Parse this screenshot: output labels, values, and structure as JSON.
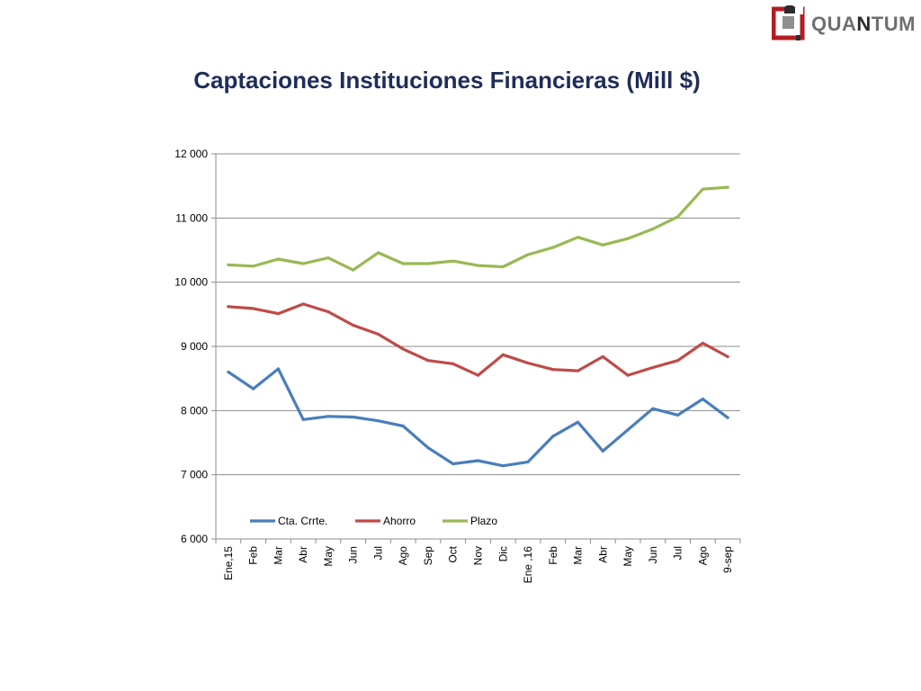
{
  "logo": {
    "text_a": "QUA",
    "text_b": "N",
    "text_c": "TUM"
  },
  "colors": {
    "cta": "#4a7ebb",
    "ahorro": "#be4b48",
    "plazo": "#98b954",
    "title": "#1f2d5a",
    "grid": "#8c8c8c"
  },
  "chart_data": {
    "type": "line",
    "title": "Captaciones Instituciones Financieras (Mill $)",
    "xlabel": "",
    "ylabel": "",
    "ylim": [
      6000,
      12000
    ],
    "yticks": [
      6000,
      7000,
      8000,
      9000,
      10000,
      11000,
      12000
    ],
    "ytick_labels": [
      "6 000",
      "7 000",
      "8 000",
      "9 000",
      "10 000",
      "11 000",
      "12 000"
    ],
    "grid": true,
    "legend_position": "inside-bottom-left",
    "categories": [
      "Ene,15",
      "Feb",
      "Mar",
      "Abr",
      "May",
      "Jun",
      "Jul",
      "Ago",
      "Sep",
      "Oct",
      "Nov",
      "Dic",
      "Ene ,16",
      "Feb",
      "Mar",
      "Abr",
      "May",
      "Jun",
      "Jul",
      "Ago",
      "9-sep"
    ],
    "series": [
      {
        "name": "Cta. Crrte.",
        "color": "#4a7ebb",
        "values": [
          8600,
          8340,
          8650,
          7860,
          7910,
          7900,
          7840,
          7760,
          7420,
          7170,
          7220,
          7140,
          7200,
          7600,
          7820,
          7370,
          7700,
          8030,
          7930,
          8180,
          7890
        ]
      },
      {
        "name": "Ahorro",
        "color": "#be4b48",
        "values": [
          9620,
          9590,
          9510,
          9660,
          9540,
          9330,
          9190,
          8960,
          8780,
          8730,
          8550,
          8870,
          8740,
          8640,
          8620,
          8840,
          8550,
          8670,
          8780,
          9050,
          8840
        ]
      },
      {
        "name": "Plazo",
        "color": "#98b954",
        "values": [
          10270,
          10250,
          10360,
          10290,
          10380,
          10190,
          10460,
          10290,
          10290,
          10330,
          10260,
          10240,
          10430,
          10540,
          10700,
          10580,
          10680,
          10830,
          11020,
          11450,
          11480
        ]
      }
    ]
  }
}
